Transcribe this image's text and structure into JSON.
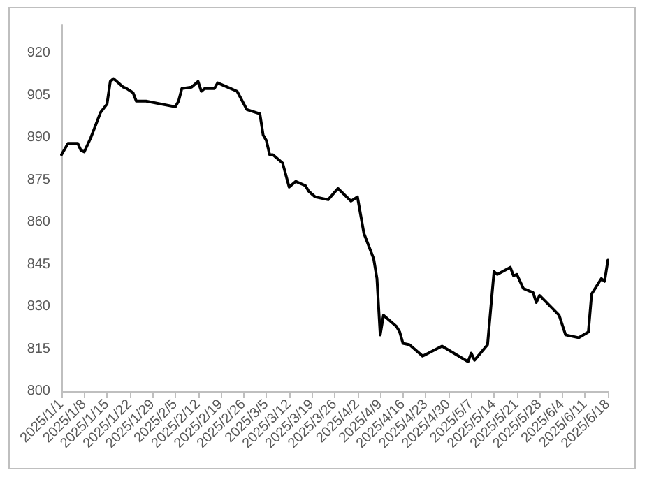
{
  "chart_data": {
    "type": "line",
    "color": "#000000",
    "x": [
      "2025-01-01",
      "2025-01-03",
      "2025-01-06",
      "2025-01-07",
      "2025-01-08",
      "2025-01-10",
      "2025-01-13",
      "2025-01-15",
      "2025-01-16",
      "2025-01-17",
      "2025-01-20",
      "2025-01-21",
      "2025-01-23",
      "2025-01-24",
      "2025-01-27",
      "2025-02-05",
      "2025-02-06",
      "2025-02-07",
      "2025-02-10",
      "2025-02-12",
      "2025-02-13",
      "2025-02-14",
      "2025-02-17",
      "2025-02-18",
      "2025-02-21",
      "2025-02-24",
      "2025-02-27",
      "2025-03-03",
      "2025-03-04",
      "2025-03-05",
      "2025-03-06",
      "2025-03-07",
      "2025-03-10",
      "2025-03-12",
      "2025-03-14",
      "2025-03-17",
      "2025-03-18",
      "2025-03-20",
      "2025-03-24",
      "2025-03-27",
      "2025-03-31",
      "2025-04-02",
      "2025-04-04",
      "2025-04-07",
      "2025-04-08",
      "2025-04-09",
      "2025-04-10",
      "2025-04-14",
      "2025-04-15",
      "2025-04-16",
      "2025-04-18",
      "2025-04-22",
      "2025-04-23",
      "2025-04-28",
      "2025-05-06",
      "2025-05-07",
      "2025-05-08",
      "2025-05-12",
      "2025-05-14",
      "2025-05-15",
      "2025-05-19",
      "2025-05-20",
      "2025-05-21",
      "2025-05-23",
      "2025-05-26",
      "2025-05-27",
      "2025-05-28",
      "2025-06-03",
      "2025-06-05",
      "2025-06-09",
      "2025-06-12",
      "2025-06-13",
      "2025-06-16",
      "2025-06-17",
      "2025-06-18"
    ],
    "values": [
      884,
      888,
      888,
      885.5,
      885,
      890,
      899,
      902,
      910,
      911,
      908,
      907.5,
      906,
      903,
      903,
      901,
      903,
      907.5,
      908,
      910,
      906.5,
      907.5,
      907.5,
      909.5,
      908,
      906.5,
      900,
      898.5,
      891,
      889,
      884,
      884,
      881,
      872.5,
      874.5,
      873,
      871,
      869,
      868,
      872,
      867.5,
      869,
      856,
      847,
      840,
      820,
      827,
      823,
      821,
      817,
      816.5,
      812.5,
      813,
      816,
      810.5,
      813.5,
      811,
      816.5,
      842.5,
      841.5,
      844,
      841,
      841.5,
      836.5,
      835,
      831.5,
      834,
      827,
      820,
      819,
      821,
      834.5,
      840,
      839,
      846.5
    ],
    "xlim": [
      "2025-01-01",
      "2025-06-18"
    ],
    "xticks": [
      {
        "value": "2025-01-01",
        "label": "2025/1/1"
      },
      {
        "value": "2025-01-08",
        "label": "2025/1/8"
      },
      {
        "value": "2025-01-15",
        "label": "2025/1/15"
      },
      {
        "value": "2025-01-22",
        "label": "2025/1/22"
      },
      {
        "value": "2025-01-29",
        "label": "2025/1/29"
      },
      {
        "value": "2025-02-05",
        "label": "2025/2/5"
      },
      {
        "value": "2025-02-12",
        "label": "2025/2/12"
      },
      {
        "value": "2025-02-19",
        "label": "2025/2/19"
      },
      {
        "value": "2025-02-26",
        "label": "2025/2/26"
      },
      {
        "value": "2025-03-05",
        "label": "2025/3/5"
      },
      {
        "value": "2025-03-12",
        "label": "2025/3/12"
      },
      {
        "value": "2025-03-19",
        "label": "2025/3/19"
      },
      {
        "value": "2025-03-26",
        "label": "2025/3/26"
      },
      {
        "value": "2025-04-02",
        "label": "2025/4/2"
      },
      {
        "value": "2025-04-09",
        "label": "2025/4/9"
      },
      {
        "value": "2025-04-16",
        "label": "2025/4/16"
      },
      {
        "value": "2025-04-23",
        "label": "2025/4/23"
      },
      {
        "value": "2025-04-30",
        "label": "2025/4/30"
      },
      {
        "value": "2025-05-07",
        "label": "2025/5/7"
      },
      {
        "value": "2025-05-14",
        "label": "2025/5/14"
      },
      {
        "value": "2025-05-21",
        "label": "2025/5/21"
      },
      {
        "value": "2025-05-28",
        "label": "2025/5/28"
      },
      {
        "value": "2025-06-04",
        "label": "2025/6/4"
      },
      {
        "value": "2025-06-11",
        "label": "2025/6/11"
      },
      {
        "value": "2025-06-18",
        "label": "2025/6/18"
      }
    ],
    "ylim": [
      800,
      930
    ],
    "yticks": [
      800,
      815,
      830,
      845,
      860,
      875,
      890,
      905,
      920
    ],
    "grid": false,
    "marker": "none",
    "line_style": "solid"
  }
}
